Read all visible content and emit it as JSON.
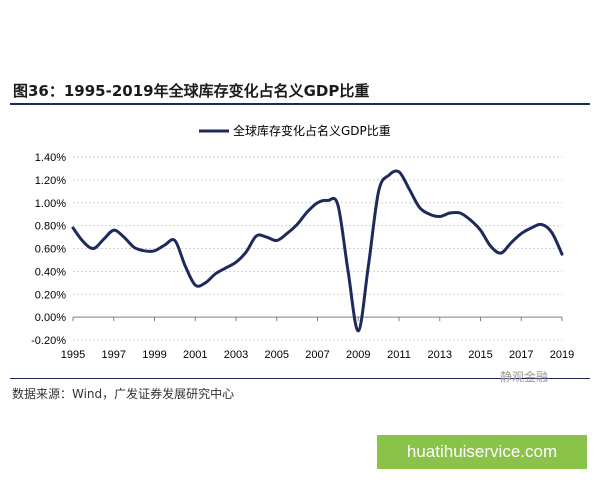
{
  "figure_label": "图36：1995-2019年全球库存变化占名义GDP比重",
  "source_text": "数据来源：Wind，广发证券发展研究中心",
  "watermark_text": "静观金融",
  "url_text": "huatihuiservice.com",
  "colors": {
    "series": "#1f2a5c",
    "url_box": "#8bc34a",
    "rule": "#1f2a5c"
  },
  "chart_data": {
    "type": "line",
    "title": "",
    "xlabel": "",
    "ylabel": "",
    "ylim": [
      -0.2,
      1.4
    ],
    "xlim": [
      1995,
      2019
    ],
    "x_ticks": [
      1995,
      1997,
      1999,
      2001,
      2003,
      2005,
      2007,
      2009,
      2011,
      2013,
      2015,
      2017,
      2019
    ],
    "y_ticks": [
      -0.2,
      0.0,
      0.2,
      0.4,
      0.6,
      0.8,
      1.0,
      1.2,
      1.4
    ],
    "y_tick_labels": [
      "-0.20%",
      "0.00%",
      "0.20%",
      "0.40%",
      "0.60%",
      "0.80%",
      "1.00%",
      "1.20%",
      "1.40%"
    ],
    "legend_position": "top-center",
    "series": [
      {
        "name": "全球库存变化占名义GDP比重",
        "x": [
          1995,
          1995.5,
          1996,
          1996.5,
          1997,
          1997.5,
          1998,
          1998.5,
          1999,
          1999.5,
          2000,
          2000.5,
          2001,
          2001.5,
          2002,
          2002.5,
          2003,
          2003.5,
          2004,
          2004.5,
          2005,
          2005.5,
          2006,
          2006.5,
          2007,
          2007.5,
          2008,
          2008.5,
          2009,
          2009.5,
          2010,
          2010.5,
          2011,
          2011.5,
          2012,
          2012.5,
          2013,
          2013.5,
          2014,
          2014.5,
          2015,
          2015.5,
          2016,
          2016.5,
          2017,
          2017.5,
          2018,
          2018.5,
          2019
        ],
        "values": [
          0.78,
          0.66,
          0.6,
          0.68,
          0.76,
          0.7,
          0.61,
          0.58,
          0.58,
          0.63,
          0.67,
          0.45,
          0.28,
          0.3,
          0.38,
          0.43,
          0.48,
          0.57,
          0.71,
          0.7,
          0.67,
          0.73,
          0.81,
          0.92,
          1.0,
          1.02,
          0.98,
          0.4,
          -0.12,
          0.45,
          1.1,
          1.24,
          1.27,
          1.12,
          0.96,
          0.9,
          0.88,
          0.91,
          0.91,
          0.85,
          0.76,
          0.62,
          0.56,
          0.65,
          0.73,
          0.78,
          0.81,
          0.74,
          0.55
        ]
      }
    ]
  }
}
